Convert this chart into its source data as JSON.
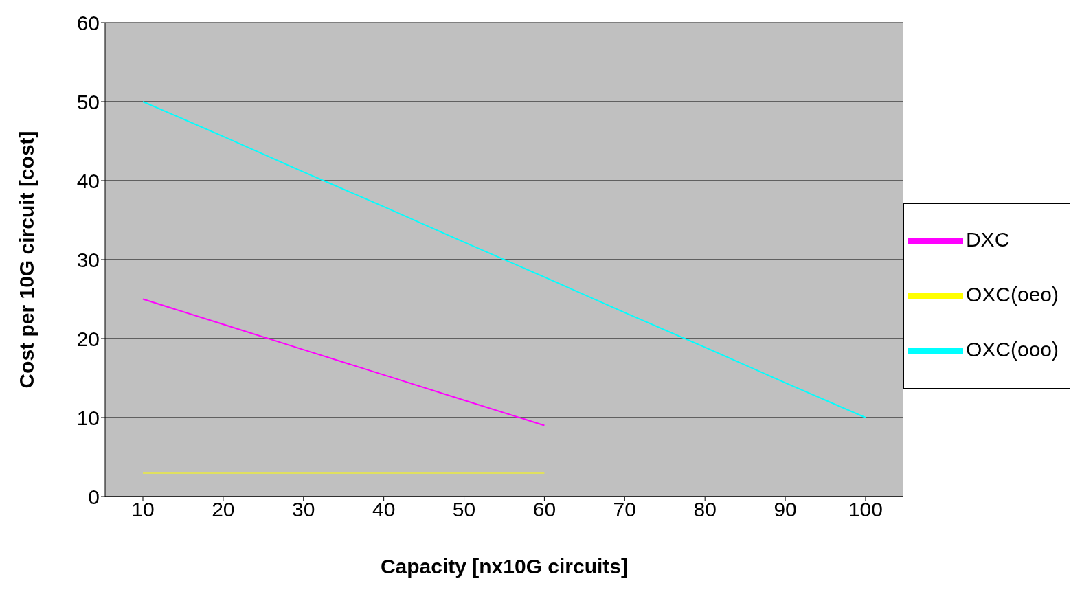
{
  "chart_data": {
    "type": "line",
    "xlabel": "Capacity [nx10G circuits]",
    "ylabel": "Cost per 10G circuit  [cost]",
    "categories": [
      "10",
      "20",
      "30",
      "40",
      "50",
      "60",
      "70",
      "80",
      "90",
      "100"
    ],
    "series": [
      {
        "name": "DXC",
        "color": "#ff00ff",
        "values": [
          25,
          21.8,
          18.6,
          15.4,
          12.2,
          9,
          null,
          null,
          null,
          null
        ]
      },
      {
        "name": "OXC(oeo)",
        "color": "#ffff00",
        "values": [
          3,
          3,
          3,
          3,
          3,
          3,
          null,
          null,
          null,
          null
        ]
      },
      {
        "name": "OXC(ooo)",
        "color": "#00ffff",
        "values": [
          50,
          45.6,
          41.1,
          36.7,
          32.2,
          27.8,
          23.3,
          18.9,
          14.4,
          10
        ]
      }
    ],
    "ylim": [
      0,
      60
    ],
    "yticks": [
      0,
      10,
      20,
      30,
      40,
      50,
      60
    ],
    "grid": "y",
    "legend": "right",
    "marker": "none",
    "line_style": "solid"
  }
}
